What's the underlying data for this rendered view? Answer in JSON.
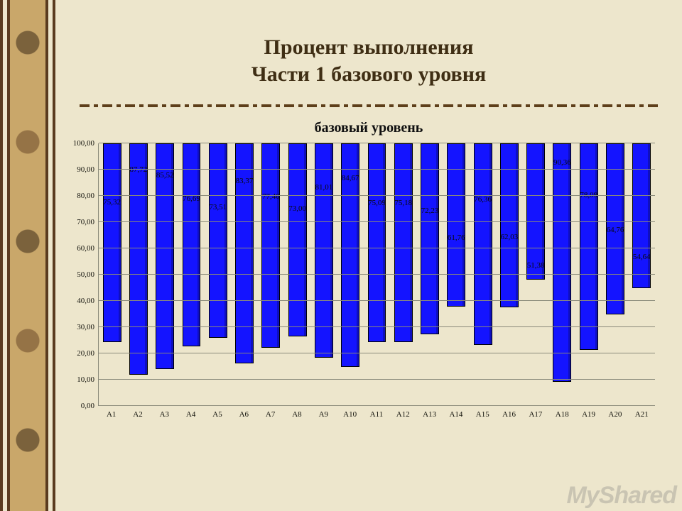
{
  "title_line1": "Процент выполнения",
  "title_line2": "Части 1 базового уровня",
  "chart": {
    "type": "bar",
    "subtitle": "базовый уровень",
    "categories": [
      "А1",
      "А2",
      "А3",
      "А4",
      "А5",
      "А6",
      "А7",
      "А8",
      "А9",
      "А10",
      "А11",
      "А12",
      "А13",
      "А14",
      "А15",
      "А16",
      "А17",
      "А18",
      "А19",
      "А20",
      "А21"
    ],
    "values": [
      75.32,
      87.72,
      85.52,
      76.69,
      73.51,
      83.37,
      77.4,
      73.0,
      81.01,
      84.67,
      75.09,
      75.18,
      72.23,
      61.76,
      76.36,
      62.03,
      51.38,
      90.36,
      78.09,
      64.76,
      54.64
    ],
    "value_labels": [
      "75,32",
      "87,72",
      "85,52",
      "76,69",
      "73,51",
      "83,37",
      "77,40",
      "73,00",
      "81,01",
      "84,67",
      "75,09",
      "75,18",
      "72,23",
      "61,76",
      "76,36",
      "62,03",
      "51,38",
      "90,36",
      "78,09",
      "64,76",
      "54,64"
    ],
    "bar_color": "#1414ff",
    "ylim": [
      0,
      100
    ],
    "ytick_step": 10,
    "ytick_labels": [
      "0,00",
      "10,00",
      "20,00",
      "30,00",
      "40,00",
      "50,00",
      "60,00",
      "70,00",
      "80,00",
      "90,00",
      "100,00"
    ],
    "grid_color": "#8a8a7a",
    "background_color": "#ede6cc",
    "title_fontsize": 30,
    "subtitle_fontsize": 20,
    "axis_fontsize": 11,
    "value_fontsize": 11,
    "bar_width": 0.64
  },
  "watermark": "MyShared"
}
